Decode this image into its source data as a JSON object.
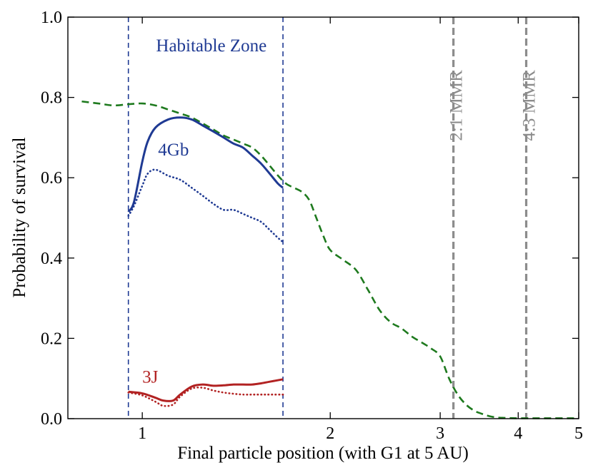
{
  "chart_data": {
    "type": "line",
    "xscale": "log",
    "xlim": [
      0.76,
      5.0
    ],
    "ylim": [
      0.0,
      1.0
    ],
    "xlabel": "Final particle position (with G1 at 5 AU)",
    "ylabel": "Probability of survival",
    "xticks": [
      {
        "value": 1,
        "label": "1"
      },
      {
        "value": 2,
        "label": "2"
      },
      {
        "value": 3,
        "label": "3"
      },
      {
        "value": 4,
        "label": "4"
      },
      {
        "value": 5,
        "label": "5"
      }
    ],
    "yticks": [
      {
        "value": 0.0,
        "label": "0.0"
      },
      {
        "value": 0.2,
        "label": "0.2"
      },
      {
        "value": 0.4,
        "label": "0.4"
      },
      {
        "value": 0.6,
        "label": "0.6"
      },
      {
        "value": 0.8,
        "label": "0.8"
      },
      {
        "value": 1.0,
        "label": "1.0"
      }
    ],
    "colors": {
      "blue": "#1f3a93",
      "green": "#1e7a1e",
      "red": "#b22222",
      "gray": "#8c8c8c"
    },
    "vlines": [
      {
        "name": "hz-inner-line",
        "x": 0.95,
        "color": "#1f3a93",
        "style": "dashed-thin"
      },
      {
        "name": "hz-outer-line",
        "x": 1.68,
        "color": "#1f3a93",
        "style": "dashed-thin"
      },
      {
        "name": "mmr-2-1-line",
        "x": 3.15,
        "color": "#8c8c8c",
        "style": "dashed-thick"
      },
      {
        "name": "mmr-4-3-line",
        "x": 4.12,
        "color": "#8c8c8c",
        "style": "dashed-thick"
      }
    ],
    "series": [
      {
        "name": "all-particles",
        "color": "#1e7a1e",
        "style": "dashed",
        "x": [
          0.8,
          0.85,
          0.9,
          0.95,
          1.0,
          1.05,
          1.1,
          1.15,
          1.2,
          1.25,
          1.3,
          1.35,
          1.4,
          1.45,
          1.5,
          1.55,
          1.6,
          1.65,
          1.7,
          1.75,
          1.8,
          1.85,
          1.9,
          1.95,
          2.0,
          2.1,
          2.2,
          2.3,
          2.4,
          2.5,
          2.6,
          2.7,
          2.8,
          2.9,
          3.0,
          3.1,
          3.2,
          3.3,
          3.4,
          3.5,
          3.6,
          3.7,
          3.8,
          4.0,
          4.5,
          5.0
        ],
        "y": [
          0.79,
          0.785,
          0.78,
          0.783,
          0.785,
          0.78,
          0.77,
          0.76,
          0.75,
          0.735,
          0.72,
          0.705,
          0.695,
          0.685,
          0.675,
          0.655,
          0.63,
          0.605,
          0.585,
          0.575,
          0.565,
          0.545,
          0.5,
          0.455,
          0.42,
          0.395,
          0.37,
          0.32,
          0.27,
          0.24,
          0.225,
          0.205,
          0.19,
          0.175,
          0.155,
          0.1,
          0.06,
          0.035,
          0.02,
          0.012,
          0.006,
          0.003,
          0.002,
          0.001,
          0.001,
          0.001
        ]
      },
      {
        "name": "4Gb-solid",
        "color": "#1f3a93",
        "style": "solid",
        "x": [
          0.95,
          0.97,
          1.0,
          1.02,
          1.05,
          1.1,
          1.15,
          1.2,
          1.25,
          1.3,
          1.35,
          1.4,
          1.45,
          1.5,
          1.55,
          1.6,
          1.65,
          1.68
        ],
        "y": [
          0.515,
          0.54,
          0.64,
          0.69,
          0.725,
          0.745,
          0.75,
          0.745,
          0.73,
          0.715,
          0.7,
          0.685,
          0.675,
          0.655,
          0.635,
          0.61,
          0.585,
          0.575
        ]
      },
      {
        "name": "4Gb-dotted",
        "color": "#1f3a93",
        "style": "dotted",
        "x": [
          0.95,
          0.97,
          1.0,
          1.02,
          1.05,
          1.1,
          1.15,
          1.2,
          1.25,
          1.3,
          1.35,
          1.4,
          1.45,
          1.5,
          1.55,
          1.6,
          1.65,
          1.68
        ],
        "y": [
          0.505,
          0.53,
          0.58,
          0.61,
          0.62,
          0.605,
          0.595,
          0.575,
          0.555,
          0.535,
          0.52,
          0.52,
          0.51,
          0.5,
          0.49,
          0.47,
          0.45,
          0.44
        ]
      },
      {
        "name": "3J-solid",
        "color": "#b22222",
        "style": "solid",
        "x": [
          0.95,
          1.0,
          1.05,
          1.08,
          1.12,
          1.15,
          1.2,
          1.25,
          1.3,
          1.35,
          1.4,
          1.45,
          1.5,
          1.55,
          1.6,
          1.68
        ],
        "y": [
          0.067,
          0.063,
          0.052,
          0.045,
          0.045,
          0.06,
          0.08,
          0.085,
          0.082,
          0.083,
          0.085,
          0.085,
          0.085,
          0.088,
          0.092,
          0.098
        ]
      },
      {
        "name": "3J-dotted",
        "color": "#b22222",
        "style": "dotted",
        "x": [
          0.95,
          1.0,
          1.05,
          1.08,
          1.12,
          1.15,
          1.2,
          1.25,
          1.3,
          1.35,
          1.4,
          1.45,
          1.5,
          1.55,
          1.6,
          1.68
        ],
        "y": [
          0.065,
          0.058,
          0.042,
          0.032,
          0.035,
          0.055,
          0.075,
          0.077,
          0.07,
          0.065,
          0.062,
          0.06,
          0.06,
          0.06,
          0.06,
          0.06
        ]
      }
    ],
    "annotations": [
      {
        "name": "habitable-zone-label",
        "text": "Habitable Zone",
        "x": 1.29,
        "y": 0.915,
        "color": "#1f3a93",
        "rotate": false,
        "anchor": "middle"
      },
      {
        "name": "4gb-label",
        "text": "4Gb",
        "x": 1.06,
        "y": 0.655,
        "color": "#1f3a93",
        "rotate": false,
        "anchor": "start"
      },
      {
        "name": "3j-label",
        "text": "3J",
        "x": 1.0,
        "y": 0.09,
        "color": "#b22222",
        "rotate": false,
        "anchor": "start"
      },
      {
        "name": "mmr-2-1-label",
        "text": "2:1 MMR",
        "x": 3.25,
        "y": 0.78,
        "color": "#8c8c8c",
        "rotate": true,
        "anchor": "middle"
      },
      {
        "name": "mmr-4-3-label",
        "text": "4:3 MMR",
        "x": 4.25,
        "y": 0.78,
        "color": "#8c8c8c",
        "rotate": true,
        "anchor": "middle"
      }
    ]
  }
}
